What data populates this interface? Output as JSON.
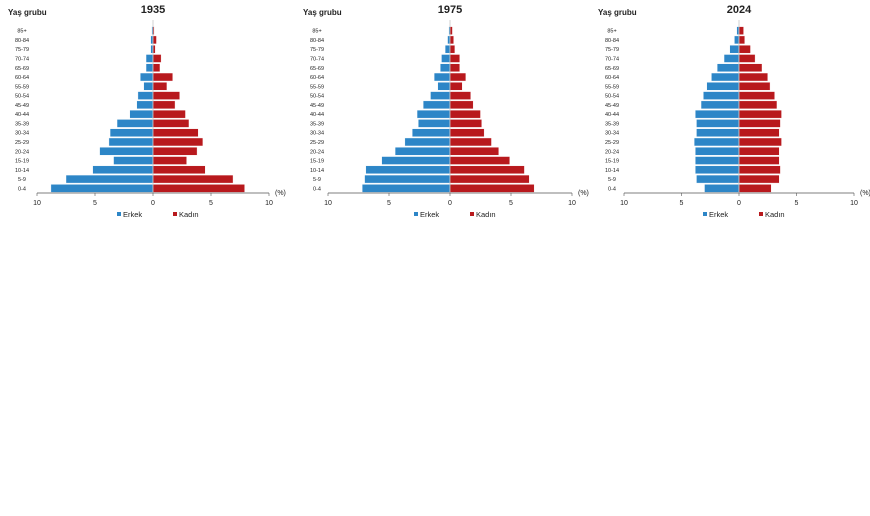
{
  "figure": {
    "y_axis_label": "Yaş grubu",
    "unit_label": "(%)"
  },
  "chart_data": [
    {
      "type": "bar",
      "orientation": "horizontal-population-pyramid",
      "title": "1935",
      "ylabel": "Yaş grubu",
      "xlabel": "(%)",
      "xlim": [
        -10,
        10
      ],
      "xticks": [
        10,
        5,
        0,
        5,
        10
      ],
      "categories": [
        "0-4",
        "5-9",
        "10-14",
        "15-19",
        "20-24",
        "25-29",
        "30-34",
        "35-39",
        "40-44",
        "45-49",
        "50-54",
        "55-59",
        "60-64",
        "65-69",
        "70-74",
        "75-79",
        "80-84",
        "85+"
      ],
      "series": [
        {
          "name": "Erkek",
          "color": "#2d86c7",
          "values": [
            8.8,
            7.5,
            5.2,
            3.4,
            4.6,
            3.8,
            3.7,
            3.1,
            2.0,
            1.4,
            1.3,
            0.8,
            1.1,
            0.6,
            0.6,
            0.2,
            0.2,
            0.1
          ]
        },
        {
          "name": "Kadın",
          "color": "#b8191d",
          "values": [
            7.9,
            6.9,
            4.5,
            2.9,
            3.8,
            4.3,
            3.9,
            3.1,
            2.8,
            1.9,
            2.3,
            1.2,
            1.7,
            0.6,
            0.7,
            0.2,
            0.3,
            0.1
          ]
        }
      ],
      "legend": "bottom"
    },
    {
      "type": "bar",
      "orientation": "horizontal-population-pyramid",
      "title": "1975",
      "ylabel": "Yaş grubu",
      "xlabel": "(%)",
      "xlim": [
        -10,
        10
      ],
      "xticks": [
        10,
        5,
        0,
        5,
        10
      ],
      "categories": [
        "0-4",
        "5-9",
        "10-14",
        "15-19",
        "20-24",
        "25-29",
        "30-34",
        "35-39",
        "40-44",
        "45-49",
        "50-54",
        "55-59",
        "60-64",
        "65-69",
        "70-74",
        "75-79",
        "80-84",
        "85+"
      ],
      "series": [
        {
          "name": "Erkek",
          "color": "#2d86c7",
          "values": [
            7.2,
            7.0,
            6.9,
            5.6,
            4.5,
            3.7,
            3.1,
            2.6,
            2.7,
            2.2,
            1.6,
            1.0,
            1.3,
            0.8,
            0.7,
            0.4,
            0.2,
            0.1
          ]
        },
        {
          "name": "Kadın",
          "color": "#b8191d",
          "values": [
            6.9,
            6.5,
            6.1,
            4.9,
            4.0,
            3.4,
            2.8,
            2.6,
            2.5,
            1.9,
            1.7,
            1.0,
            1.3,
            0.8,
            0.8,
            0.4,
            0.3,
            0.2
          ]
        }
      ],
      "legend": "bottom"
    },
    {
      "type": "bar",
      "orientation": "horizontal-population-pyramid",
      "title": "2024",
      "ylabel": "Yaş grubu",
      "xlabel": "(%)",
      "xlim": [
        -10,
        10
      ],
      "xticks": [
        10,
        5,
        0,
        5,
        10
      ],
      "categories": [
        "0-4",
        "5-9",
        "10-14",
        "15-19",
        "20-24",
        "25-29",
        "30-34",
        "35-39",
        "40-44",
        "45-49",
        "50-54",
        "55-59",
        "60-64",
        "65-69",
        "70-74",
        "75-79",
        "80-84",
        "85+"
      ],
      "series": [
        {
          "name": "Erkek",
          "color": "#2d86c7",
          "values": [
            3.0,
            3.7,
            3.8,
            3.8,
            3.8,
            3.9,
            3.7,
            3.7,
            3.8,
            3.3,
            3.1,
            2.8,
            2.4,
            1.9,
            1.3,
            0.8,
            0.4,
            0.2
          ]
        },
        {
          "name": "Kadın",
          "color": "#b8191d",
          "values": [
            2.8,
            3.5,
            3.6,
            3.5,
            3.5,
            3.7,
            3.5,
            3.6,
            3.7,
            3.3,
            3.1,
            2.7,
            2.5,
            2.0,
            1.4,
            1.0,
            0.5,
            0.4
          ]
        }
      ],
      "legend": "bottom"
    }
  ]
}
